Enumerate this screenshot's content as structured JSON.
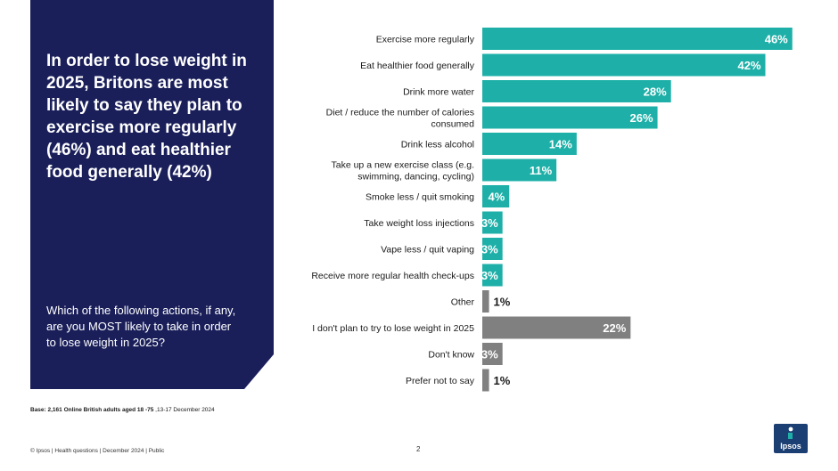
{
  "headline": "In order to lose weight in 2025, Britons are most likely to say they plan to exercise more regularly (46%) and eat healthier food generally (42%)",
  "question": "Which of the following actions, if any, are you MOST likely to take in order to lose weight in 2025?",
  "base_note": {
    "bold": "Base: 2,161 Online British adults aged 18 -75",
    "rest": " ,13-17 December 2024"
  },
  "footer": "© Ipsos | Health questions | December 2024 | Public",
  "page_number": "2",
  "logo_text": "Ipsos",
  "colors": {
    "panel": "#1a1f5a",
    "teal": "#1eb0a8",
    "grey": "#808080",
    "logo": "#1c3f73"
  },
  "chart_data": {
    "type": "bar",
    "orientation": "horizontal",
    "categories": [
      [
        "Exercise more regularly"
      ],
      [
        "Eat healthier food generally"
      ],
      [
        "Drink more water"
      ],
      [
        "Diet / reduce the number of calories",
        "consumed"
      ],
      [
        "Drink less alcohol"
      ],
      [
        "Take up a new exercise class (e.g.",
        "swimming, dancing, cycling)"
      ],
      [
        "Smoke less / quit smoking"
      ],
      [
        "Take weight loss injections"
      ],
      [
        "Vape less / quit vaping"
      ],
      [
        "Receive more regular health check-ups"
      ],
      [
        "Other"
      ],
      [
        "I don't plan to try to lose weight in 2025"
      ],
      [
        "Don't know"
      ],
      [
        "Prefer not to say"
      ]
    ],
    "values": [
      46,
      42,
      28,
      26,
      14,
      11,
      4,
      3,
      3,
      3,
      1,
      22,
      3,
      1
    ],
    "value_labels": [
      "46%",
      "42%",
      "28%",
      "26%",
      "14%",
      "11%",
      "4%",
      "3%",
      "3%",
      "3%",
      "1%",
      "22%",
      "3%",
      "1%"
    ],
    "bar_colors": [
      "teal",
      "teal",
      "teal",
      "teal",
      "teal",
      "teal",
      "teal",
      "teal",
      "teal",
      "teal",
      "grey",
      "grey",
      "grey",
      "grey"
    ],
    "xlim": [
      0,
      50
    ],
    "grid": false,
    "legend": "none"
  }
}
